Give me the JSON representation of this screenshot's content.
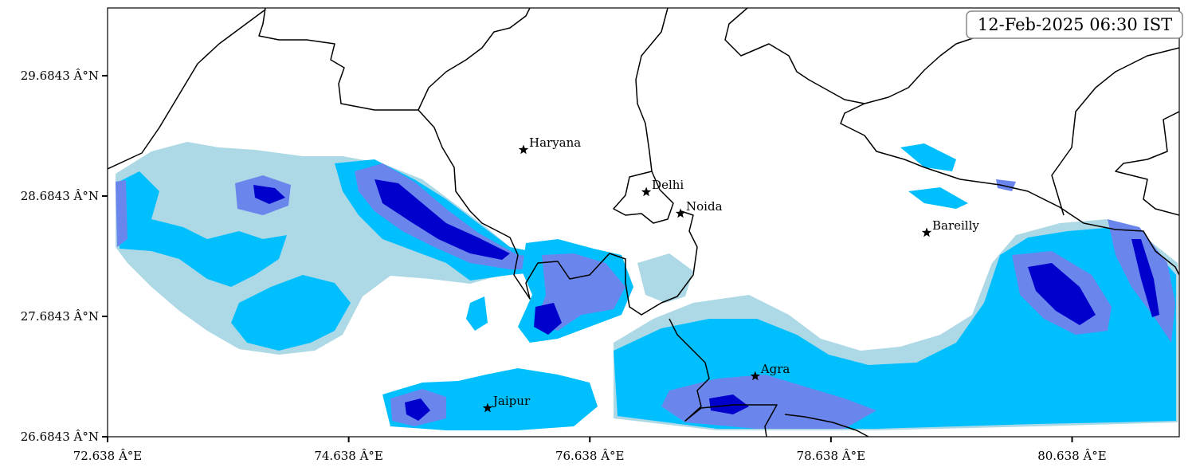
{
  "map": {
    "timestamp": "12-Feb-2025 06:30 IST",
    "xlim": [
      72.638,
      81.527
    ],
    "ylim": [
      26.6843,
      30.247
    ],
    "xticks": [
      {
        "value": 72.638,
        "label": "72.638 Â°E"
      },
      {
        "value": 74.638,
        "label": "74.638 Â°E"
      },
      {
        "value": 76.638,
        "label": "76.638 Â°E"
      },
      {
        "value": 78.638,
        "label": "78.638 Â°E"
      },
      {
        "value": 80.638,
        "label": "80.638 Â°E"
      }
    ],
    "yticks": [
      {
        "value": 26.6843,
        "label": "26.6843 Â°N"
      },
      {
        "value": 27.6843,
        "label": "27.6843 Â°N"
      },
      {
        "value": 28.6843,
        "label": "28.6843 Â°N"
      },
      {
        "value": 29.6843,
        "label": "29.6843 Â°N"
      }
    ],
    "cities": [
      {
        "name": "Haryana",
        "lon": 76.088,
        "lat": 29.068
      },
      {
        "name": "Delhi",
        "lon": 77.106,
        "lat": 28.717
      },
      {
        "name": "Noida",
        "lon": 77.39,
        "lat": 28.539
      },
      {
        "name": "Bareilly",
        "lon": 79.432,
        "lat": 28.38
      },
      {
        "name": "Agra",
        "lon": 78.01,
        "lat": 27.187
      },
      {
        "name": "Jaipur",
        "lon": 75.79,
        "lat": 26.922
      }
    ]
  }
}
